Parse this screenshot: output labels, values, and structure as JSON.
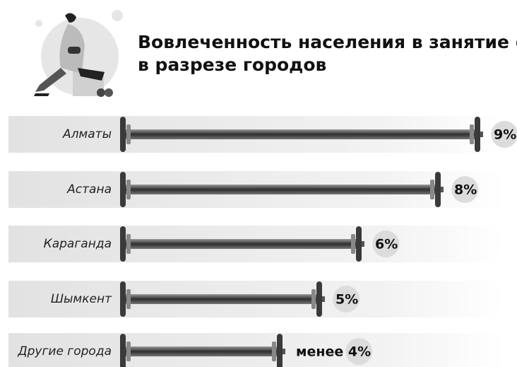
{
  "chart_data": {
    "type": "barbell",
    "title": "Вовлеченность населения в занятие фитнесом в разрезе городов",
    "categories": [
      "Алматы",
      "Астана",
      "Караганда",
      "Шымкент",
      "Другие города"
    ],
    "values": [
      9,
      8,
      6,
      5,
      4
    ],
    "value_labels": [
      "9%",
      "8%",
      "6%",
      "5%",
      "менее 4%"
    ],
    "color": "#3a3a3a"
  }
}
